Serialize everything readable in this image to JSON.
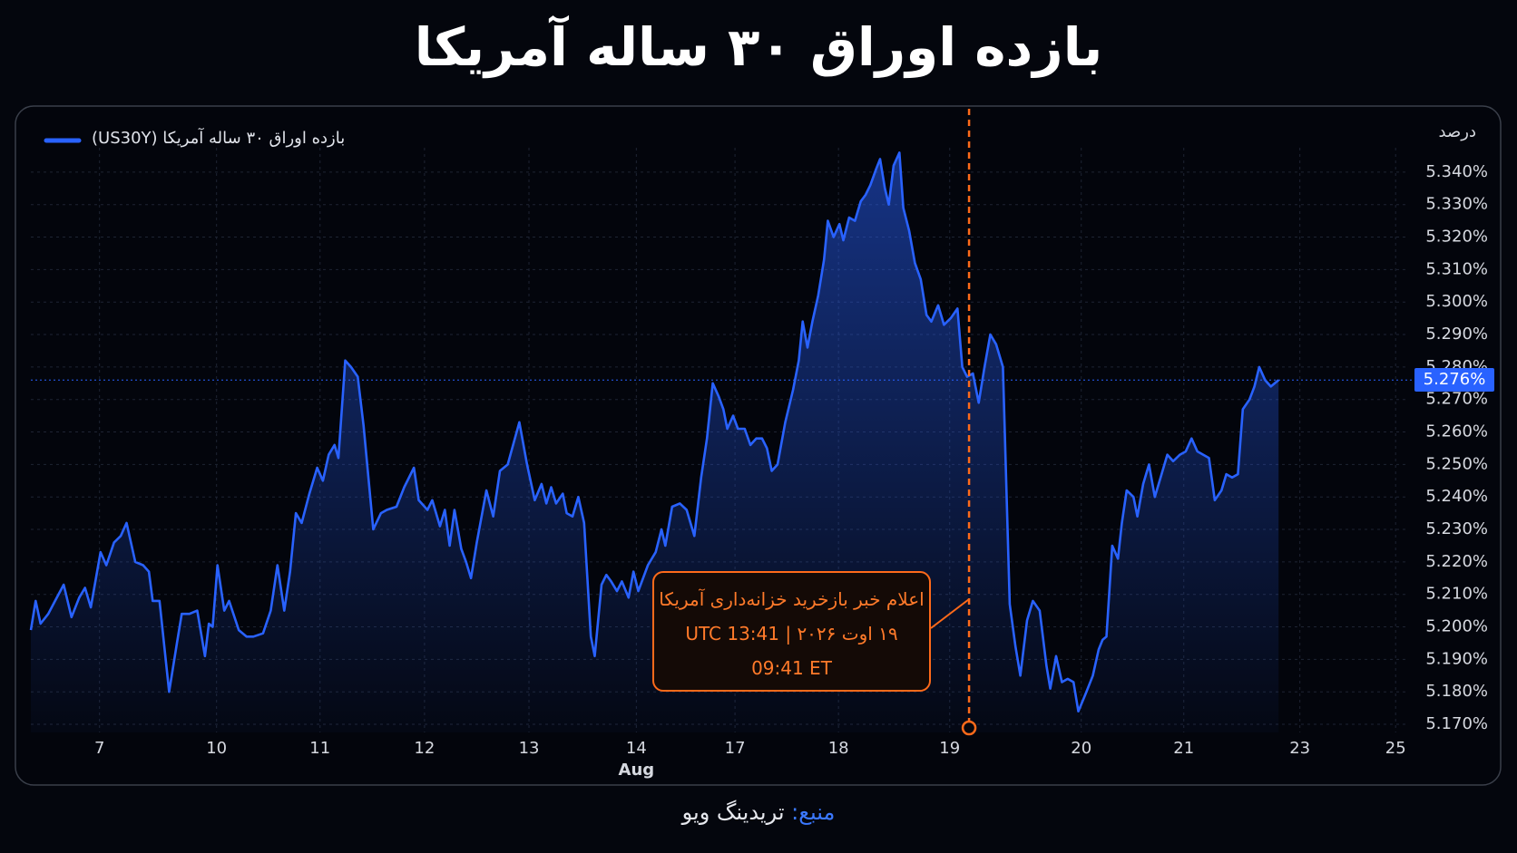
{
  "chart_data": {
    "type": "line",
    "title": "بازده اوراق ۳۰ ساله آمریکا",
    "y_unit": "درصد",
    "source_label": "منبع:",
    "source": "تریدینگ ویو",
    "x": [
      0,
      5,
      10,
      18,
      25,
      34,
      42,
      50,
      56,
      62,
      72,
      78,
      86,
      93,
      99,
      108,
      116,
      122,
      126,
      133,
      143,
      151,
      156,
      164,
      172,
      180,
      184,
      188,
      193,
      200,
      205,
      215,
      223,
      230,
      240,
      248,
      255,
      262,
      268,
      274,
      280,
      288,
      296,
      302,
      308,
      314,
      318,
      325,
      331,
      338,
      344,
      354,
      362,
      368,
      378,
      386,
      396,
      401,
      410,
      415,
      423,
      428,
      433,
      438,
      445,
      450,
      455,
      461,
      471,
      478,
      485,
      493,
      505,
      513,
      521,
      528,
      533,
      538,
      543,
      550,
      554,
      560,
      566,
      572,
      579,
      583,
      590,
      595,
      600,
      606,
      611,
      618,
      623,
      628,
      638,
      646,
      652,
      656,
      663,
      671,
      678,
      686,
      693,
      699,
      705,
      711,
      716,
      720,
      726,
      731,
      738,
      744,
      750,
      756,
      761,
      766,
      772,
      780,
      788,
      794,
      798,
      803,
      808,
      814,
      820,
      824,
      830,
      836,
      840,
      846,
      852,
      858,
      863,
      868,
      874,
      878,
      883,
      887,
      892,
      898,
      902,
      908,
      914,
      920,
      926,
      931,
      938,
      944,
      951,
      958,
      963,
      968,
      974,
      980,
      986,
      992,
      998,
      1005,
      1012,
      1018,
      1023,
      1030,
      1036,
      1043,
      1050,
      1054,
      1060,
      1066,
      1072,
      1078,
      1083,
      1090,
      1098,
      1104,
      1108,
      1112,
      1118,
      1124,
      1128,
      1133,
      1140,
      1144,
      1150,
      1156,
      1162,
      1168,
      1175,
      1181,
      1188,
      1194,
      1200,
      1206,
      1212,
      1218,
      1224,
      1231,
      1236,
      1242,
      1248,
      1253,
      1260,
      1265,
      1270,
      1276,
      1282,
      1290
    ],
    "series": [
      {
        "name": "بازده اوراق ۳۰ ساله آمریکا  (US30Y)",
        "color": "#2962ff",
        "values": [
          5.199,
          5.208,
          5.201,
          5.204,
          5.208,
          5.213,
          5.203,
          5.209,
          5.212,
          5.206,
          5.223,
          5.219,
          5.226,
          5.228,
          5.232,
          5.22,
          5.219,
          5.217,
          5.208,
          5.208,
          5.18,
          5.195,
          5.204,
          5.204,
          5.205,
          5.191,
          5.201,
          5.2,
          5.219,
          5.205,
          5.208,
          5.199,
          5.197,
          5.197,
          5.198,
          5.205,
          5.219,
          5.205,
          5.217,
          5.235,
          5.232,
          5.241,
          5.249,
          5.245,
          5.253,
          5.256,
          5.252,
          5.282,
          5.28,
          5.277,
          5.262,
          5.23,
          5.235,
          5.236,
          5.237,
          5.243,
          5.249,
          5.239,
          5.236,
          5.239,
          5.231,
          5.236,
          5.225,
          5.236,
          5.224,
          5.22,
          5.215,
          5.226,
          5.242,
          5.234,
          5.248,
          5.25,
          5.263,
          5.25,
          5.239,
          5.244,
          5.238,
          5.243,
          5.238,
          5.241,
          5.235,
          5.234,
          5.24,
          5.232,
          5.197,
          5.191,
          5.213,
          5.216,
          5.214,
          5.211,
          5.214,
          5.209,
          5.217,
          5.211,
          5.219,
          5.223,
          5.23,
          5.225,
          5.237,
          5.238,
          5.236,
          5.228,
          5.246,
          5.258,
          5.275,
          5.271,
          5.267,
          5.261,
          5.265,
          5.261,
          5.261,
          5.256,
          5.258,
          5.258,
          5.255,
          5.248,
          5.25,
          5.263,
          5.273,
          5.282,
          5.294,
          5.286,
          5.294,
          5.302,
          5.313,
          5.325,
          5.32,
          5.324,
          5.319,
          5.326,
          5.325,
          5.331,
          5.333,
          5.336,
          5.341,
          5.344,
          5.335,
          5.33,
          5.342,
          5.346,
          5.329,
          5.322,
          5.312,
          5.307,
          5.296,
          5.294,
          5.299,
          5.293,
          5.295,
          5.298,
          5.28,
          5.277,
          5.278,
          5.269,
          5.28,
          5.29,
          5.287,
          5.28,
          5.207,
          5.194,
          5.185,
          5.202,
          5.208,
          5.205,
          5.188,
          5.181,
          5.191,
          5.183,
          5.184,
          5.183,
          5.174,
          5.179,
          5.185,
          5.193,
          5.196,
          5.197,
          5.225,
          5.221,
          5.232,
          5.242,
          5.24,
          5.234,
          5.244,
          5.25,
          5.24,
          5.246,
          5.253,
          5.251,
          5.253,
          5.254,
          5.258,
          5.254,
          5.253,
          5.252,
          5.239,
          5.242,
          5.247,
          5.246,
          5.247,
          5.267,
          5.27,
          5.274,
          5.28,
          5.276,
          5.274,
          5.276
        ]
      }
    ],
    "xlim": [
      0,
      1423
    ],
    "xticks": [
      {
        "value": 71,
        "label": "7"
      },
      {
        "value": 192,
        "label": "10"
      },
      {
        "value": 299,
        "label": "11"
      },
      {
        "value": 407,
        "label": "12"
      },
      {
        "value": 515,
        "label": "13"
      },
      {
        "value": 626,
        "label": "14"
      },
      {
        "value": 728,
        "label": "17"
      },
      {
        "value": 835,
        "label": "18"
      },
      {
        "value": 950,
        "label": "19"
      },
      {
        "value": 1086,
        "label": "20"
      },
      {
        "value": 1192,
        "label": "21"
      },
      {
        "value": 1312,
        "label": "23"
      },
      {
        "value": 1411,
        "label": "25"
      }
    ],
    "month_label": {
      "value": 626,
      "label": "Aug"
    },
    "ylim": [
      5.1675,
      5.3475
    ],
    "yticks": [
      {
        "value": 5.17,
        "label": "5.170%"
      },
      {
        "value": 5.18,
        "label": "5.180%"
      },
      {
        "value": 5.19,
        "label": "5.190%"
      },
      {
        "value": 5.2,
        "label": "5.200%"
      },
      {
        "value": 5.21,
        "label": "5.210%"
      },
      {
        "value": 5.22,
        "label": "5.220%"
      },
      {
        "value": 5.23,
        "label": "5.230%"
      },
      {
        "value": 5.24,
        "label": "5.240%"
      },
      {
        "value": 5.25,
        "label": "5.250%"
      },
      {
        "value": 5.26,
        "label": "5.260%"
      },
      {
        "value": 5.27,
        "label": "5.270%"
      },
      {
        "value": 5.28,
        "label": "5.280%"
      },
      {
        "value": 5.29,
        "label": "5.290%"
      },
      {
        "value": 5.3,
        "label": "5.300%"
      },
      {
        "value": 5.31,
        "label": "5.310%"
      },
      {
        "value": 5.32,
        "label": "5.320%"
      },
      {
        "value": 5.33,
        "label": "5.330%"
      },
      {
        "value": 5.34,
        "label": "5.340%"
      }
    ],
    "grid": true,
    "last_value": {
      "value": 5.276,
      "label": "5.276%"
    },
    "event_line": {
      "x": 970,
      "color": "#ff6a1a"
    },
    "annotation": {
      "lines": [
        "اعلام خبر بازخرید خزانه‌داری آمریکا",
        "۱۹ اوت ۲۰۲۶ | 13:41 UTC",
        "09:41 ET"
      ]
    }
  }
}
